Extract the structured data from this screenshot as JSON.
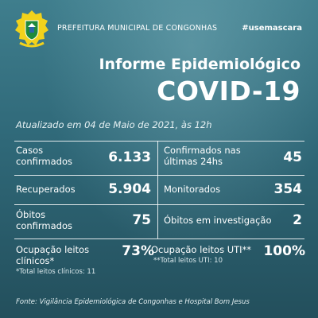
{
  "header": {
    "organization": "PREFEITURA MUNICIPAL DE CONGONHAS",
    "hashtag": "#usemascara",
    "crest_icon": "coat-of-arms-icon"
  },
  "report": {
    "subtitle": "Informe Epidemiológico",
    "title": "COVID-19",
    "updated": "Atualizado em 04 de Maio de 2021, às 12h"
  },
  "stats": {
    "casos": {
      "label": "Casos\nconfirmados",
      "value": "6.133"
    },
    "confirmados24": {
      "label": "Confirmados nas\núltimas 24hs",
      "value": "45"
    },
    "recuperados": {
      "label": "Recuperados",
      "value": "5.904"
    },
    "monitorados": {
      "label": "Monitorados",
      "value": "354"
    },
    "obitos": {
      "label": "Óbitos\nconfirmados",
      "value": "75"
    },
    "investigacao": {
      "label": "Óbitos em investigação",
      "value": "2"
    },
    "leitos_clinicos": {
      "label": "Ocupação leitos\nclínicos*",
      "value": "73%",
      "note": "*Total leitos clínicos: 11"
    },
    "leitos_uti": {
      "label": "Ocupação leitos UTI**",
      "value": "100%",
      "note": "**Total leitos UTI: 10"
    }
  },
  "footer": {
    "source": "Fonte: Vigilância Epidemiológica de Congonhas e Hospital Bom Jesus"
  },
  "colors": {
    "background_top": "#3f7e8d",
    "background_bottom": "#234f5c",
    "crest_yellow": "#f2d21b",
    "crest_green": "#1f8a3c"
  }
}
